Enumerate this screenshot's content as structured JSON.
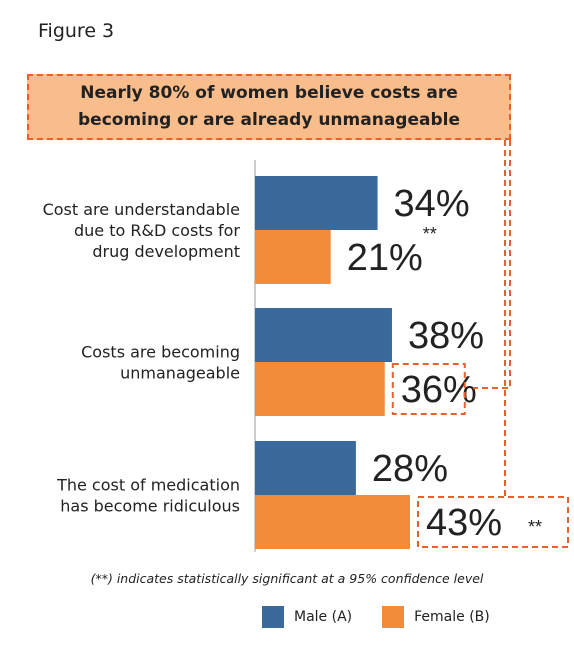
{
  "figure_label": "Figure 3",
  "callout": {
    "line1": "Nearly 80% of women believe costs are",
    "line2": "becoming or are already unmanageable"
  },
  "footnote": "(**) indicates statistically significant at a 95% confidence level",
  "chart_data": {
    "type": "bar",
    "orientation": "horizontal",
    "categories": [
      [
        "Cost are understandable",
        "due to R&D costs for",
        "drug development"
      ],
      [
        "Costs are becoming",
        "unmanageable"
      ],
      [
        "The cost of medication",
        "has become ridiculous"
      ]
    ],
    "series": [
      {
        "name": "Male (A)",
        "color": "#3a6a9c",
        "values": [
          34,
          38,
          28
        ]
      },
      {
        "name": "Female (B)",
        "color": "#f28c3a",
        "values": [
          21,
          36,
          43
        ]
      }
    ],
    "value_labels": [
      [
        "34%",
        "38%",
        "28%"
      ],
      [
        "21%",
        "36%",
        "43%"
      ]
    ],
    "significance_marks": [
      {
        "series": 1,
        "category": 0,
        "mark": "**"
      },
      {
        "series": 1,
        "category": 2,
        "mark": "**"
      }
    ],
    "highlighted": [
      {
        "series": 1,
        "category": 1
      },
      {
        "series": 1,
        "category": 2
      }
    ],
    "xlim": [
      0,
      43
    ],
    "legend_position": "bottom",
    "grid": false
  }
}
